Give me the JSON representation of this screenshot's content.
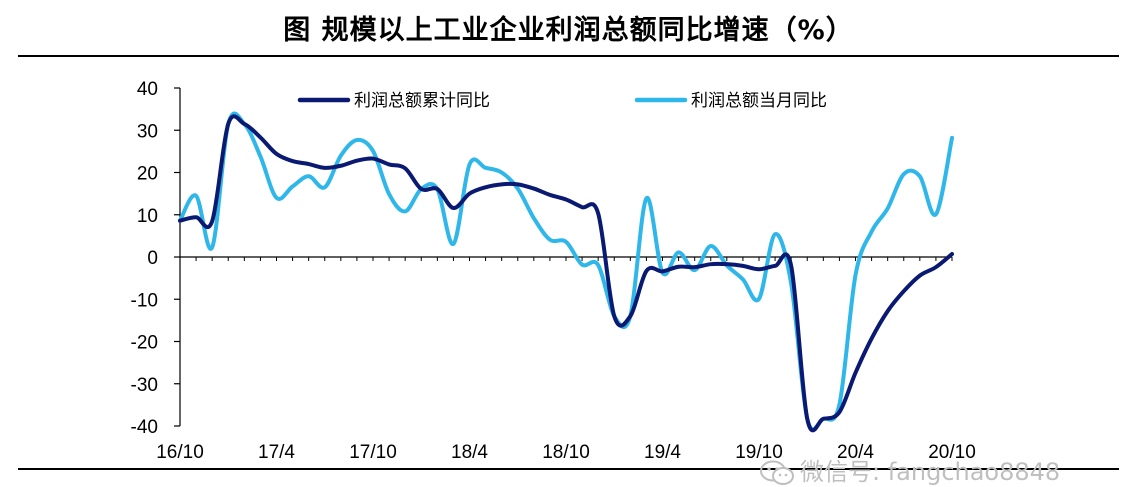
{
  "title": "图  规模以上工业企业利润总额同比增速（%）",
  "watermark": {
    "icon": "wechat-icon",
    "text": "微信号: fangchao8848"
  },
  "colors": {
    "cumulative": "#0a1972",
    "monthly": "#2fb7ea"
  },
  "chart_data": {
    "type": "line",
    "title": "图  规模以上工业企业利润总额同比增速（%）",
    "xlabel": "",
    "ylabel": "",
    "ylim": [
      -40,
      40
    ],
    "yticks": [
      40,
      30,
      20,
      10,
      0,
      -10,
      -20,
      -30,
      -40
    ],
    "xtick_labels": [
      "16/10",
      "17/4",
      "17/10",
      "18/4",
      "18/10",
      "19/4",
      "19/10",
      "20/4",
      "20/10"
    ],
    "x": [
      "16/10",
      "16/11",
      "16/12",
      "17/1",
      "17/2",
      "17/3",
      "17/4",
      "17/5",
      "17/6",
      "17/7",
      "17/8",
      "17/9",
      "17/10",
      "17/11",
      "17/12",
      "18/1",
      "18/2",
      "18/3",
      "18/4",
      "18/5",
      "18/6",
      "18/7",
      "18/8",
      "18/9",
      "18/10",
      "18/11",
      "18/12",
      "19/1",
      "19/2",
      "19/3",
      "19/4",
      "19/5",
      "19/6",
      "19/7",
      "19/8",
      "19/9",
      "19/10",
      "19/11",
      "19/12",
      "20/1",
      "20/2",
      "20/3",
      "20/4",
      "20/5",
      "20/6",
      "20/7",
      "20/8",
      "20/9",
      "20/10"
    ],
    "legend_position": "top",
    "grid": false,
    "series": [
      {
        "name": "利润总额累计同比",
        "color": "#0a1972",
        "values": [
          8.6,
          9.4,
          8.5,
          31.5,
          31.5,
          28.3,
          24.4,
          22.7,
          22.0,
          21.1,
          21.6,
          22.8,
          23.3,
          21.9,
          21.0,
          16.1,
          16.1,
          11.6,
          15.0,
          16.5,
          17.2,
          17.2,
          16.2,
          14.7,
          13.6,
          11.8,
          10.3,
          -14.0,
          -14.0,
          -3.3,
          -3.4,
          -2.3,
          -2.4,
          -1.7,
          -1.7,
          -2.1,
          -2.9,
          -2.1,
          -2.1,
          -38.3,
          -38.3,
          -36.7,
          -27.4,
          -19.3,
          -12.8,
          -8.1,
          -4.4,
          -2.4,
          0.7
        ]
      },
      {
        "name": "利润总额当月同比",
        "color": "#2fb7ea",
        "values": [
          8.6,
          14.5,
          2.3,
          31.5,
          31.5,
          23.8,
          14.0,
          16.7,
          19.1,
          16.5,
          24.0,
          27.7,
          25.1,
          14.9,
          10.8,
          16.1,
          16.1,
          3.1,
          21.9,
          21.1,
          20.0,
          16.2,
          9.2,
          4.1,
          3.6,
          -1.8,
          -1.9,
          -14.0,
          -14.0,
          13.9,
          -3.7,
          1.1,
          -3.1,
          2.6,
          -2.0,
          -5.3,
          -9.9,
          5.4,
          -6.3,
          -38.3,
          -38.3,
          -34.9,
          -4.3,
          6.0,
          11.5,
          19.6,
          19.1,
          10.1,
          28.2
        ]
      }
    ]
  }
}
